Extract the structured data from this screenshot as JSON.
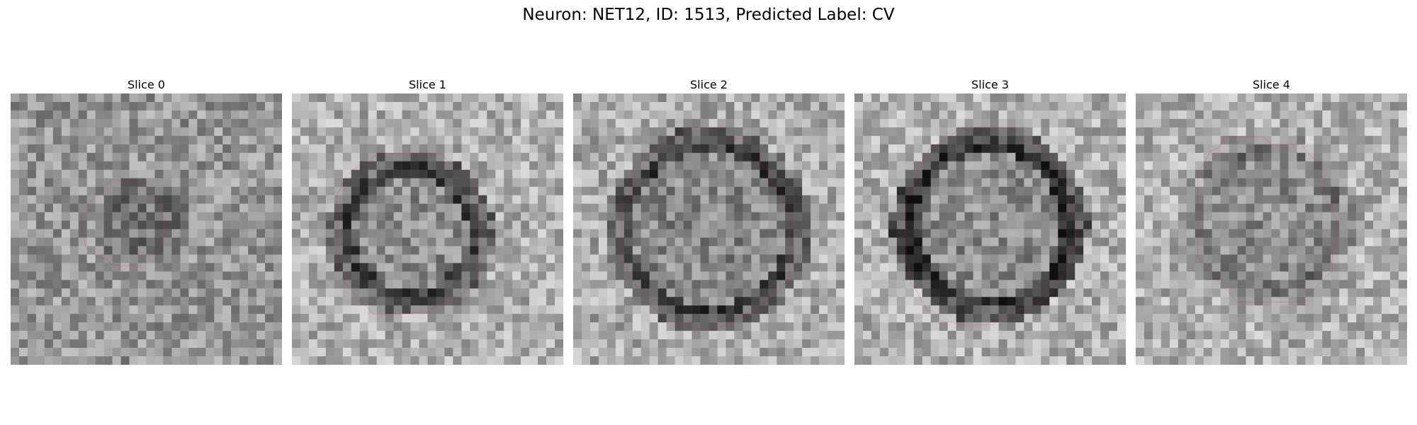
{
  "figure": {
    "title": "Neuron: NET12, ID: 1513, Predicted Label: CV"
  },
  "panels": [
    {
      "title": "Slice 0"
    },
    {
      "title": "Slice 1"
    },
    {
      "title": "Slice 2"
    },
    {
      "title": "Slice 3"
    },
    {
      "title": "Slice 4"
    }
  ],
  "colors": {
    "contour": "#e8201a",
    "colormap": "gray"
  }
}
